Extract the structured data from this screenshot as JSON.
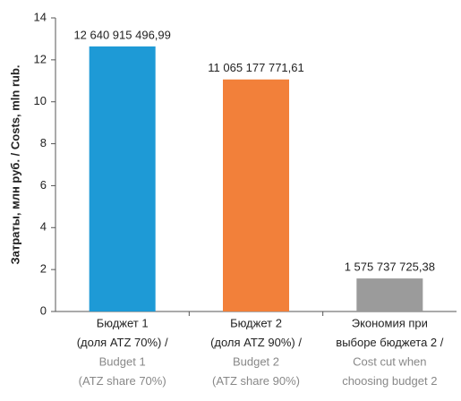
{
  "chart_data": {
    "type": "bar",
    "y_label": "Затраты, млн руб. / Costs, mln rub.",
    "categories": [
      [
        "Бюджет 1",
        "(доля ATZ 70%) /",
        "Budget 1",
        "(ATZ share 70%)"
      ],
      [
        "Бюджет 2",
        "(доля ATZ 90%) /",
        "Budget 2",
        "(ATZ share 90%)"
      ],
      [
        "Экономия при",
        "выборе бюджета 2 /",
        "Cost cut when",
        "choosing budget 2"
      ]
    ],
    "values": [
      12.64091549699,
      11.06517777161,
      1.57573772538
    ],
    "value_labels": [
      "12 640 915 496,99",
      "11 065 177 771,61",
      "1 575 737 725,38"
    ],
    "colors": [
      "#1e9ad6",
      "#f2803a",
      "#9b9b9b"
    ],
    "ylim": [
      0,
      14
    ],
    "yticks": [
      0,
      2,
      4,
      6,
      8,
      10,
      12,
      14
    ]
  }
}
